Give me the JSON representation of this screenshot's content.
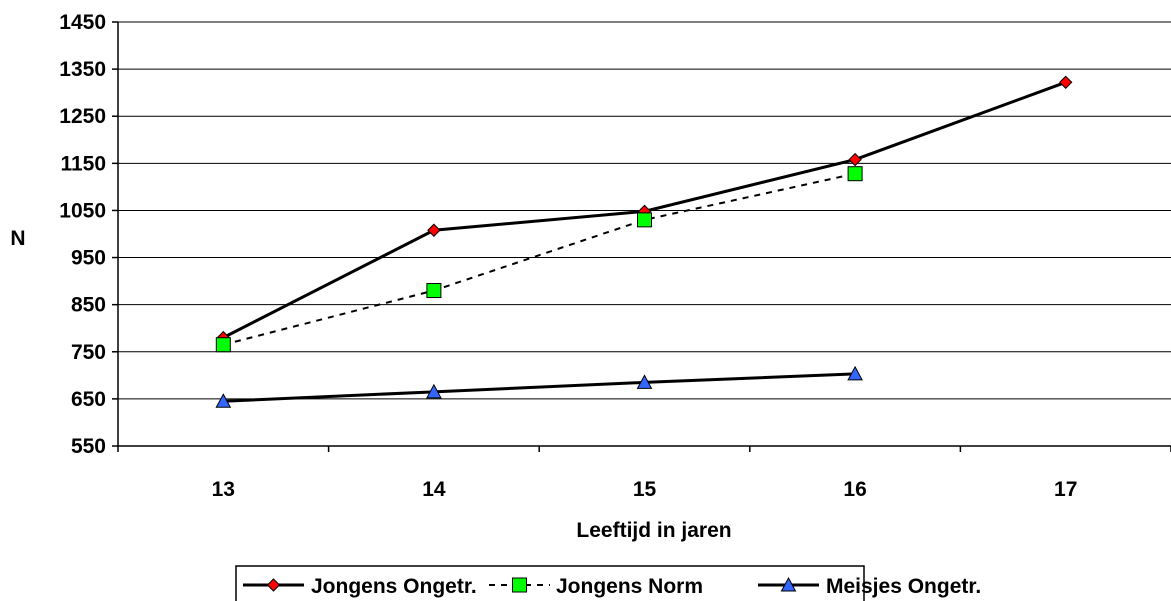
{
  "chart_data": {
    "type": "line",
    "title": "",
    "xlabel": "Leeftijd in jaren",
    "ylabel": "N",
    "x": [
      "13",
      "14",
      "15",
      "16",
      "17"
    ],
    "ylim": [
      550,
      1450
    ],
    "yticks": [
      550,
      650,
      750,
      850,
      950,
      1050,
      1150,
      1250,
      1350,
      1450
    ],
    "grid": "horizontal",
    "legend_position": "bottom",
    "series": [
      {
        "name": "Jongens Ongetr.",
        "values": [
          780,
          1008,
          1048,
          1158,
          1322
        ],
        "line": "solid",
        "marker": "diamond",
        "marker_color": "#ff0000"
      },
      {
        "name": "Jongens Norm",
        "values": [
          765,
          880,
          1030,
          1128,
          null
        ],
        "line": "dashed",
        "marker": "square",
        "marker_color": "#00ff00"
      },
      {
        "name": "Meisjes Ongetr.",
        "values": [
          645,
          665,
          685,
          703,
          null
        ],
        "line": "solid",
        "marker": "triangle",
        "marker_color": "#3366ff"
      }
    ]
  }
}
